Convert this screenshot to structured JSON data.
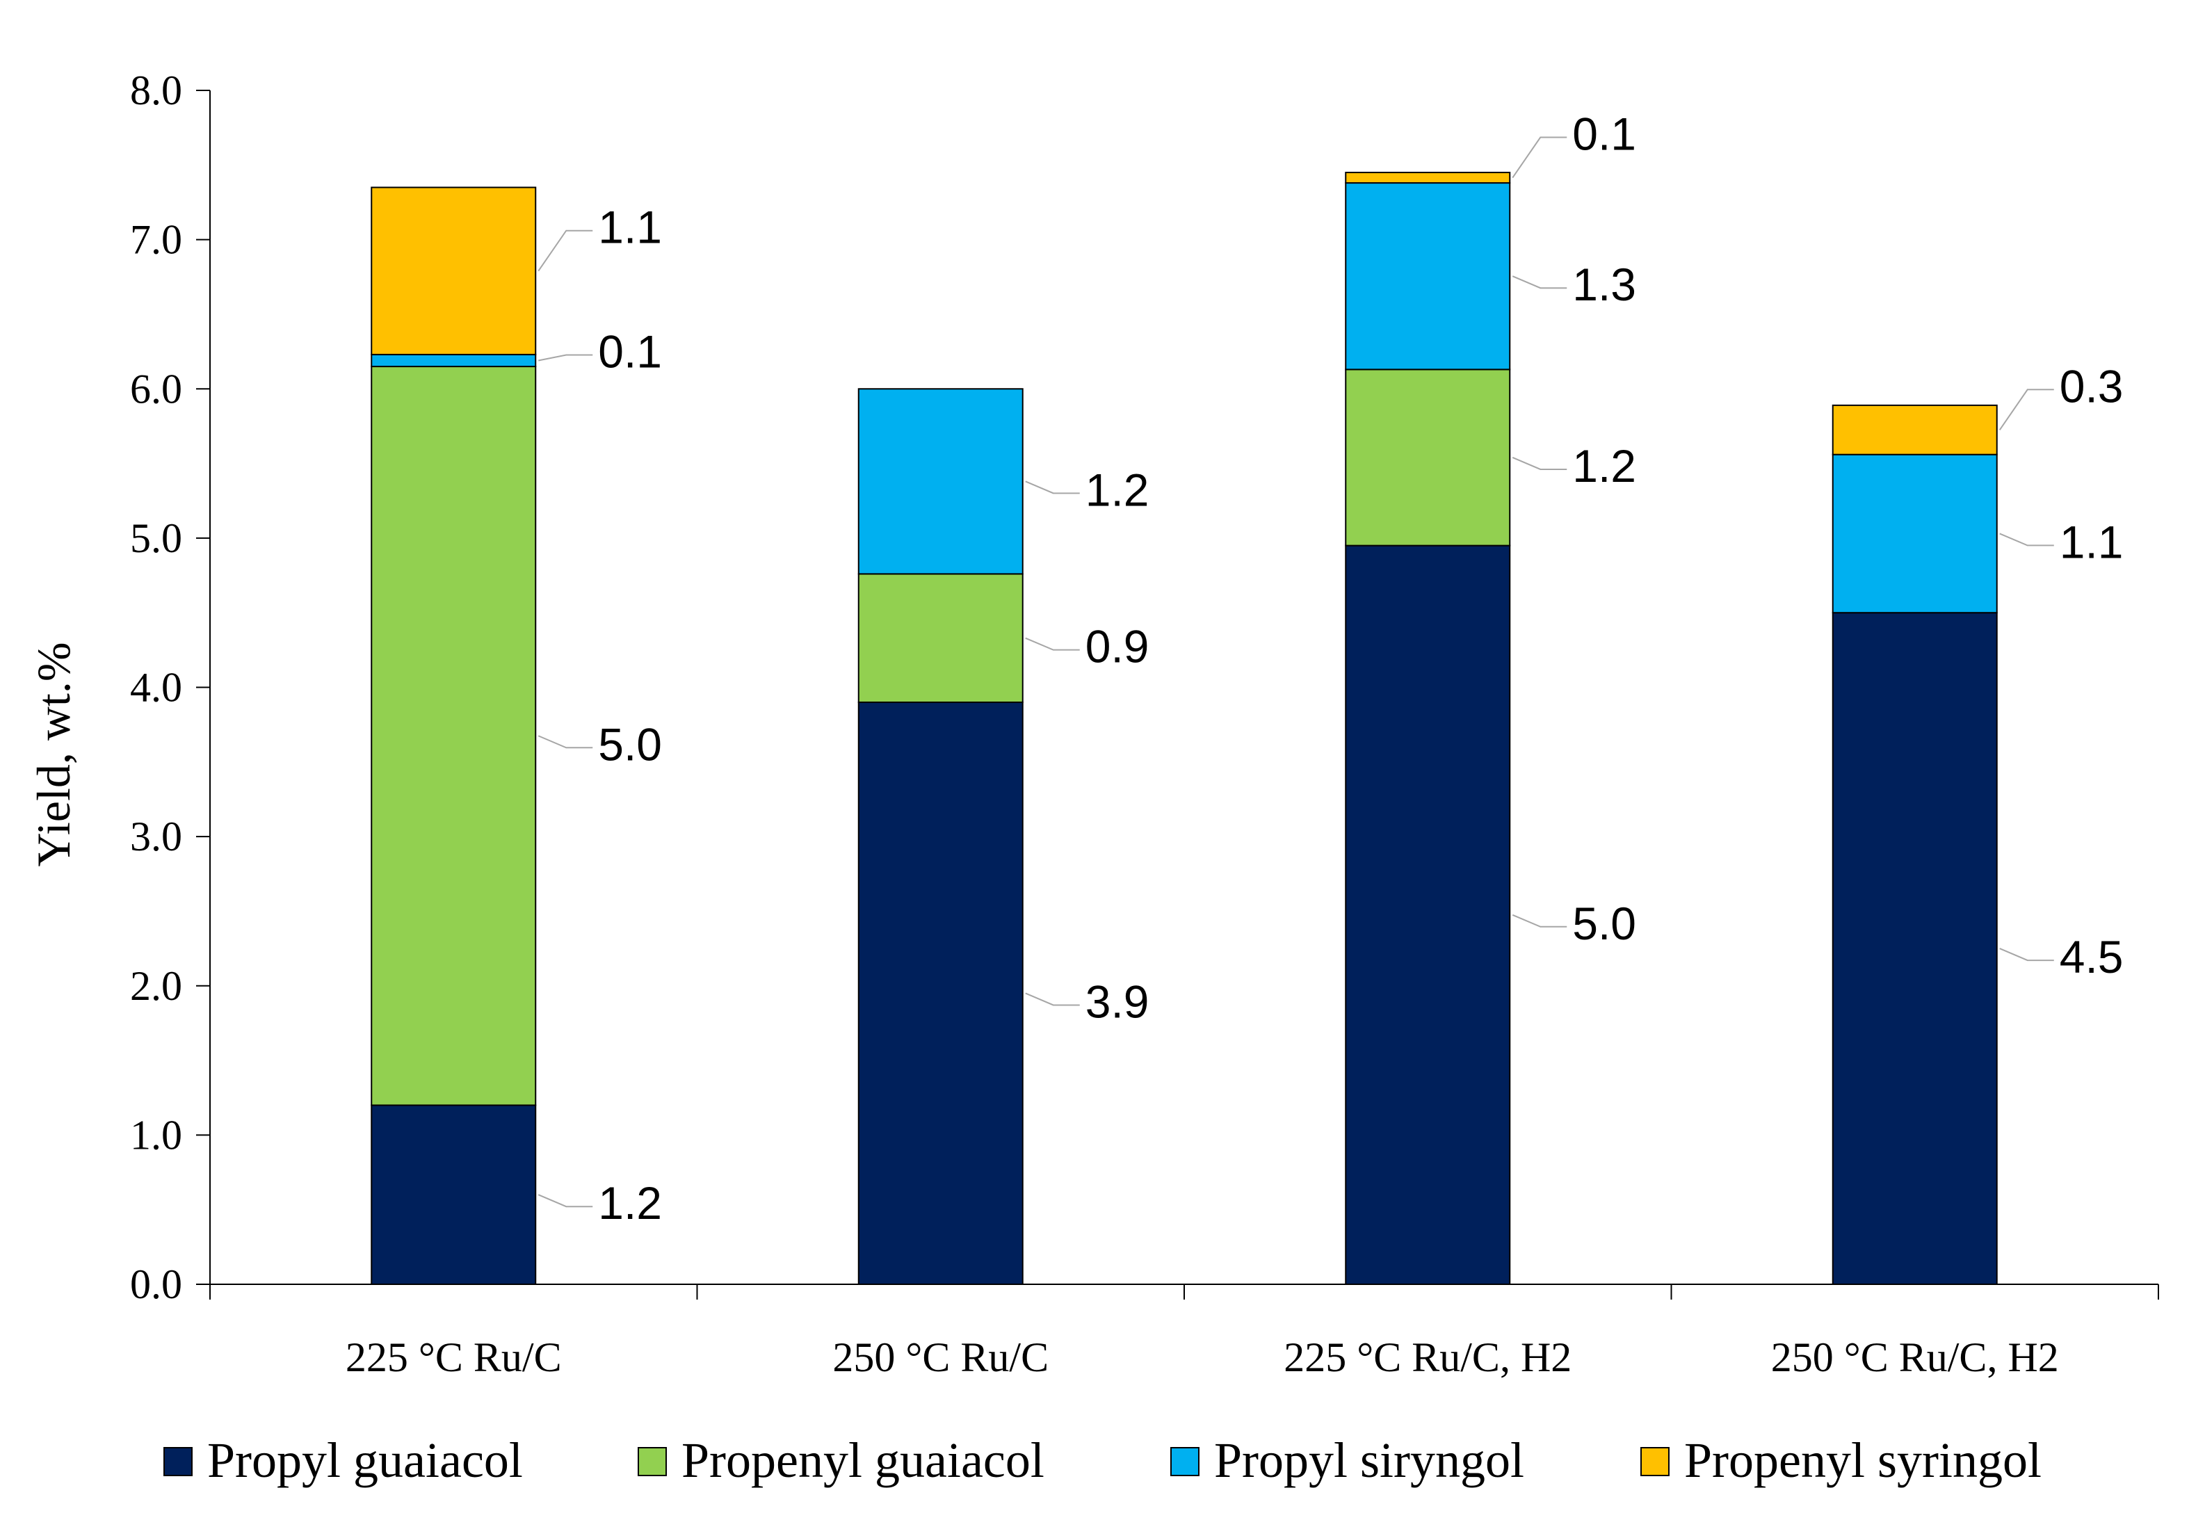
{
  "chart_data": {
    "type": "bar",
    "stacked": true,
    "title": "",
    "xlabel": "",
    "ylabel": "Yield, wt.%",
    "ylim": [
      0,
      8
    ],
    "yticks": [
      "0.0",
      "1.0",
      "2.0",
      "3.0",
      "4.0",
      "5.0",
      "6.0",
      "7.0",
      "8.0"
    ],
    "grid": false,
    "legend_position": "bottom",
    "categories": [
      "225 °C Ru/C",
      "250 °C Ru/C",
      "225 °C Ru/C, H2",
      "250 °C Ru/C, H2"
    ],
    "series": [
      {
        "name": "Propyl guaiacol",
        "color": "#00205b",
        "values": [
          1.2,
          3.9,
          4.95,
          4.5
        ],
        "labels": [
          "1.2",
          "3.9",
          "5.0",
          "4.5"
        ]
      },
      {
        "name": "Propenyl guaiacol",
        "color": "#92d050",
        "values": [
          4.95,
          0.86,
          1.18,
          0
        ],
        "labels": [
          "5.0",
          "0.9",
          "1.2",
          ""
        ]
      },
      {
        "name": "Propyl siryngol",
        "color": "#00b0f0",
        "values": [
          0.08,
          1.24,
          1.25,
          1.06
        ],
        "labels": [
          "0.1",
          "1.2",
          "1.3",
          "1.1"
        ]
      },
      {
        "name": "Propenyl syringol",
        "color": "#ffc000",
        "values": [
          1.12,
          0,
          0.07,
          0.33
        ],
        "labels": [
          "1.1",
          "",
          "0.1",
          "0.3"
        ]
      }
    ]
  }
}
